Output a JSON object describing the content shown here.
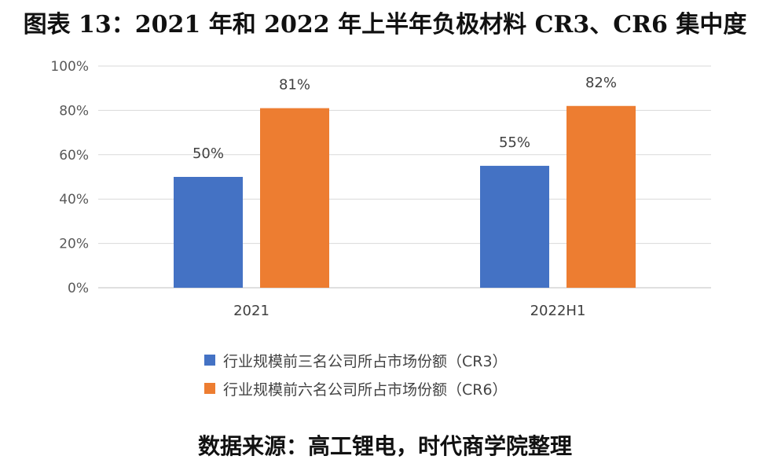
{
  "title": "图表 13：2021 年和 2022 年上半年负极材料 CR3、CR6 集中度",
  "source": "数据来源：高工锂电，时代商学院整理",
  "chart_data": {
    "type": "bar",
    "categories": [
      "2021",
      "2022H1"
    ],
    "series": [
      {
        "name": "行业规模前三名公司所占市场份额（CR3）",
        "values": [
          50,
          55
        ],
        "labels": [
          "50%",
          "55%"
        ],
        "color": "#4472C4"
      },
      {
        "name": "行业规模前六名公司所占市场份额（CR6）",
        "values": [
          81,
          82
        ],
        "labels": [
          "81%",
          "82%"
        ],
        "color": "#ED7D31"
      }
    ],
    "ylim": [
      0,
      100
    ],
    "yticks": [
      0,
      20,
      40,
      60,
      80,
      100
    ],
    "ytick_labels": [
      "0%",
      "20%",
      "40%",
      "60%",
      "80%",
      "100%"
    ],
    "grid": true,
    "legend_position": "bottom"
  }
}
